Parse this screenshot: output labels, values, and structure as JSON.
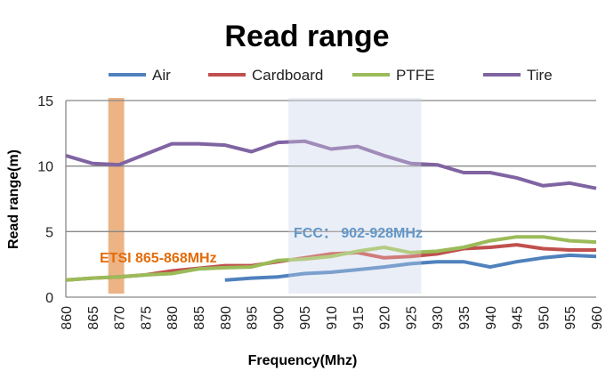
{
  "chart_data": {
    "type": "line",
    "title": "Read range",
    "xlabel": "Frequency(Mhz)",
    "ylabel": "Read range(m)",
    "xlim": [
      860,
      960
    ],
    "ylim": [
      0,
      15
    ],
    "yticks": [
      0,
      5,
      10,
      15
    ],
    "x": [
      860,
      865,
      870,
      875,
      880,
      885,
      890,
      895,
      900,
      905,
      910,
      915,
      920,
      925,
      930,
      935,
      940,
      945,
      950,
      955,
      960
    ],
    "grid": true,
    "legend_position": "top",
    "series": [
      {
        "name": "Air",
        "color": "#4f81bd",
        "values": [
          null,
          null,
          null,
          null,
          null,
          null,
          1.3,
          1.45,
          1.55,
          1.8,
          1.9,
          2.1,
          2.3,
          2.55,
          2.7,
          2.7,
          2.3,
          2.7,
          3.0,
          3.2,
          3.1
        ]
      },
      {
        "name": "Cardboard",
        "color": "#c0504d",
        "values": [
          1.3,
          1.45,
          1.55,
          1.7,
          2.0,
          2.2,
          2.4,
          2.4,
          2.7,
          3.0,
          3.3,
          3.4,
          3.0,
          3.1,
          3.3,
          3.7,
          3.8,
          4.0,
          3.7,
          3.6,
          3.6
        ]
      },
      {
        "name": "PTFE",
        "color": "#9bbb59",
        "values": [
          1.3,
          1.45,
          1.55,
          1.7,
          1.8,
          2.15,
          2.25,
          2.3,
          2.8,
          2.9,
          3.1,
          3.5,
          3.8,
          3.4,
          3.5,
          3.8,
          4.3,
          4.6,
          4.6,
          4.3,
          4.2
        ]
      },
      {
        "name": "Tire",
        "color": "#8064a2",
        "values": [
          10.8,
          10.2,
          10.1,
          10.9,
          11.7,
          11.7,
          11.6,
          11.1,
          11.8,
          11.9,
          11.3,
          11.5,
          10.8,
          10.2,
          10.1,
          9.5,
          9.5,
          9.1,
          8.5,
          8.7,
          8.3
        ]
      }
    ],
    "bands": [
      {
        "label": "ETSI 865-868MHz",
        "range": [
          868,
          871
        ],
        "color": "#e59a5c",
        "label_color": "#e36c0a"
      },
      {
        "label": "FCC： 902-928MHz",
        "range": [
          902,
          927
        ],
        "color": "#dce4f1",
        "label_color": "#2e75b6"
      }
    ]
  }
}
